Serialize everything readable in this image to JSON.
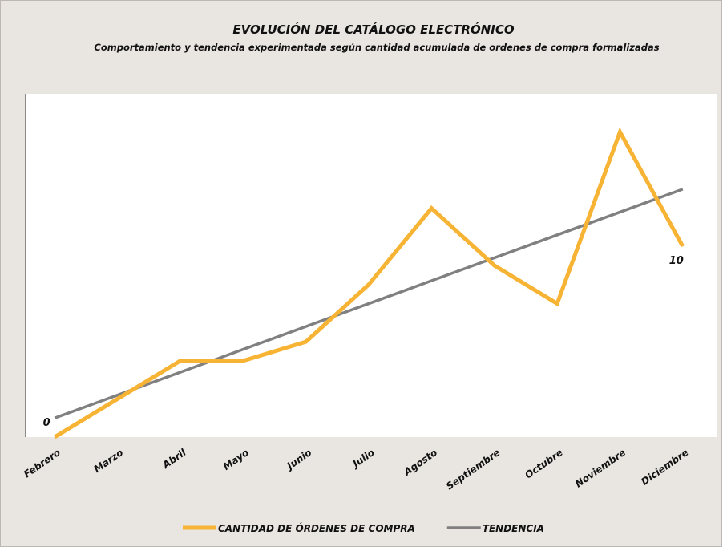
{
  "chart_data": {
    "type": "line",
    "title": "EVOLUCIÓN DEL CATÁLOGO ELECTRÓNICO",
    "subtitle": "Comportamiento y tendencia experimentada según cantidad acumulada de ordenes de compra formalizadas",
    "categories": [
      "Febrero",
      "Marzo",
      "Abril",
      "Mayo",
      "Junio",
      "Julio",
      "Agosto",
      "Septiembre",
      "Octubre",
      "Noviembre",
      "Diciembre"
    ],
    "series": [
      {
        "name": "CANTIDAD DE ÓRDENES DE COMPRA",
        "color": "#f7b334",
        "values": [
          0,
          2,
          4,
          4,
          5,
          8,
          12,
          9,
          7,
          16,
          10
        ],
        "value_labels": [
          "0",
          null,
          null,
          null,
          null,
          null,
          null,
          null,
          null,
          null,
          "10"
        ]
      },
      {
        "name": "TENDENCIA",
        "color": "#808080",
        "values": [
          1,
          2.2,
          3.4,
          4.6,
          5.8,
          7,
          8.2,
          9.4,
          10.6,
          11.8,
          13
        ]
      }
    ],
    "ylim": [
      0,
      18
    ],
    "legend": "bottom"
  }
}
